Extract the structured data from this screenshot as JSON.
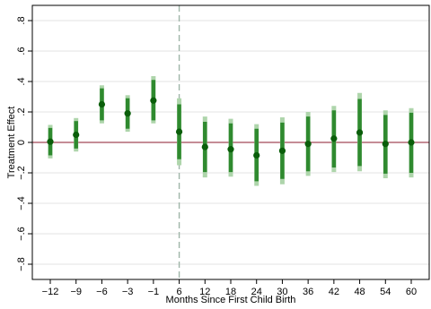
{
  "chart_data": {
    "type": "scatter",
    "title": "",
    "xlabel": "Months Since First Child Birth",
    "ylabel": "Treatment Effect",
    "x_ticks": [
      -12,
      -9,
      -6,
      -3,
      -1,
      6,
      12,
      18,
      24,
      30,
      36,
      42,
      48,
      54,
      60
    ],
    "y_ticks": [
      -0.8,
      -0.6,
      -0.4,
      -0.2,
      0,
      0.2,
      0.4,
      0.6,
      0.8
    ],
    "y_tick_labels": [
      "−.8",
      "−.6",
      "−.4",
      "−.2",
      "0",
      ".2",
      ".4",
      ".6",
      ".8"
    ],
    "x_tick_labels": [
      "−12",
      "−9",
      "−6",
      "−3",
      "−1",
      "6",
      "12",
      "18",
      "24",
      "30",
      "36",
      "42",
      "48",
      "54",
      "60"
    ],
    "ylim": [
      -0.9,
      0.9
    ],
    "grid": true,
    "zero_line": true,
    "reference_x": 6,
    "points": [
      {
        "x": -12,
        "y": 0.005,
        "ci95": [
          -0.105,
          0.115
        ],
        "ci90": [
          -0.085,
          0.095
        ]
      },
      {
        "x": -9,
        "y": 0.05,
        "ci95": [
          -0.06,
          0.16
        ],
        "ci90": [
          -0.04,
          0.14
        ]
      },
      {
        "x": -6,
        "y": 0.25,
        "ci95": [
          0.125,
          0.375
        ],
        "ci90": [
          0.145,
          0.355
        ]
      },
      {
        "x": -3,
        "y": 0.19,
        "ci95": [
          0.07,
          0.31
        ],
        "ci90": [
          0.09,
          0.29
        ]
      },
      {
        "x": -1,
        "y": 0.275,
        "ci95": [
          0.125,
          0.435
        ],
        "ci90": [
          0.145,
          0.41
        ]
      },
      {
        "x": 6,
        "y": 0.07,
        "ci95": [
          -0.15,
          0.29
        ],
        "ci90": [
          -0.11,
          0.25
        ]
      },
      {
        "x": 12,
        "y": -0.03,
        "ci95": [
          -0.23,
          0.17
        ],
        "ci90": [
          -0.195,
          0.135
        ]
      },
      {
        "x": 18,
        "y": -0.045,
        "ci95": [
          -0.225,
          0.155
        ],
        "ci90": [
          -0.195,
          0.125
        ]
      },
      {
        "x": 24,
        "y": -0.085,
        "ci95": [
          -0.285,
          0.12
        ],
        "ci90": [
          -0.255,
          0.09
        ]
      },
      {
        "x": 30,
        "y": -0.055,
        "ci95": [
          -0.275,
          0.165
        ],
        "ci90": [
          -0.24,
          0.13
        ]
      },
      {
        "x": 36,
        "y": -0.01,
        "ci95": [
          -0.22,
          0.2
        ],
        "ci90": [
          -0.19,
          0.17
        ]
      },
      {
        "x": 42,
        "y": 0.025,
        "ci95": [
          -0.195,
          0.24
        ],
        "ci90": [
          -0.165,
          0.21
        ]
      },
      {
        "x": 48,
        "y": 0.065,
        "ci95": [
          -0.19,
          0.325
        ],
        "ci90": [
          -0.155,
          0.285
        ]
      },
      {
        "x": 54,
        "y": -0.01,
        "ci95": [
          -0.235,
          0.21
        ],
        "ci90": [
          -0.205,
          0.18
        ]
      },
      {
        "x": 60,
        "y": 0.0,
        "ci95": [
          -0.23,
          0.225
        ],
        "ci90": [
          -0.2,
          0.195
        ]
      }
    ],
    "colors": {
      "point": "#0a5e0a",
      "ci95": "#aed5ab",
      "ci90": "#2f8a2f",
      "zero_line": "#8b1a2e",
      "reference_line": "#9fb5a8",
      "grid": "#e3e3e3",
      "axis": "#000000"
    }
  }
}
